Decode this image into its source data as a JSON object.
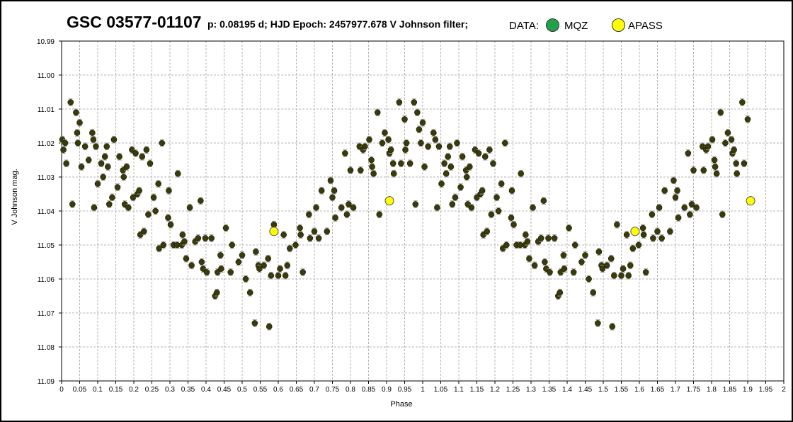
{
  "header": {
    "star_name": "GSC 03577-01107",
    "subtitle": "p: 0.08195 d; HJD Epoch: 2457977.678  V Johnson filter;",
    "legend_title": "DATA:"
  },
  "legend": [
    {
      "label": "MQZ",
      "color": "#22a04a"
    },
    {
      "label": "APASS",
      "color": "#ffff00"
    }
  ],
  "chart_data": {
    "type": "scatter",
    "xlabel": "Phase",
    "ylabel": "V Johnson mag.",
    "xlim": [
      0,
      2
    ],
    "ylim": [
      10.99,
      11.09
    ],
    "y_inverted": true,
    "grid": true,
    "x_ticks": [
      "0",
      "0.05",
      "0.1",
      "0.15",
      "0.2",
      "0.25",
      "0.3",
      "0.35",
      "0.4",
      "0.45",
      "0.5",
      "0.55",
      "0.6",
      "0.65",
      "0.7",
      "0.75",
      "0.8",
      "0.85",
      "0.9",
      "0.95",
      "1",
      "1.05",
      "1.1",
      "1.15",
      "1.2",
      "1.25",
      "1.3",
      "1.35",
      "1.4",
      "1.45",
      "1.5",
      "1.55",
      "1.6",
      "1.65",
      "1.7",
      "1.75",
      "1.8",
      "1.85",
      "1.9",
      "1.95",
      "2"
    ],
    "y_ticks": [
      "10.99",
      "11.00",
      "11.01",
      "11.02",
      "11.03",
      "11.04",
      "11.05",
      "11.06",
      "11.07",
      "11.08",
      "11.09"
    ],
    "series": [
      {
        "name": "MQZ",
        "color": "#3a3a0a",
        "error": 0.001,
        "points": [
          [
            0.002,
            11.019
          ],
          [
            0.005,
            11.022
          ],
          [
            0.01,
            11.02
          ],
          [
            0.013,
            11.026
          ],
          [
            0.025,
            11.008
          ],
          [
            0.03,
            11.038
          ],
          [
            0.04,
            11.011
          ],
          [
            0.043,
            11.017
          ],
          [
            0.045,
            11.02
          ],
          [
            0.05,
            11.014
          ],
          [
            0.055,
            11.027
          ],
          [
            0.065,
            11.021
          ],
          [
            0.075,
            11.025
          ],
          [
            0.085,
            11.017
          ],
          [
            0.088,
            11.019
          ],
          [
            0.09,
            11.039
          ],
          [
            0.095,
            11.021
          ],
          [
            0.1,
            11.032
          ],
          [
            0.11,
            11.026
          ],
          [
            0.115,
            11.03
          ],
          [
            0.12,
            11.024
          ],
          [
            0.125,
            11.021
          ],
          [
            0.128,
            11.027
          ],
          [
            0.132,
            11.038
          ],
          [
            0.14,
            11.036
          ],
          [
            0.145,
            11.019
          ],
          [
            0.155,
            11.033
          ],
          [
            0.16,
            11.024
          ],
          [
            0.17,
            11.028
          ],
          [
            0.172,
            11.03
          ],
          [
            0.175,
            11.038
          ],
          [
            0.18,
            11.027
          ],
          [
            0.185,
            11.039
          ],
          [
            0.195,
            11.022
          ],
          [
            0.198,
            11.036
          ],
          [
            0.205,
            11.023
          ],
          [
            0.21,
            11.035
          ],
          [
            0.215,
            11.034
          ],
          [
            0.218,
            11.047
          ],
          [
            0.223,
            11.024
          ],
          [
            0.228,
            11.046
          ],
          [
            0.235,
            11.022
          ],
          [
            0.24,
            11.041
          ],
          [
            0.245,
            11.026
          ],
          [
            0.255,
            11.036
          ],
          [
            0.26,
            11.04
          ],
          [
            0.268,
            11.032
          ],
          [
            0.27,
            11.051
          ],
          [
            0.278,
            11.02
          ],
          [
            0.282,
            11.05
          ],
          [
            0.295,
            11.042
          ],
          [
            0.297,
            11.034
          ],
          [
            0.302,
            11.044
          ],
          [
            0.31,
            11.05
          ],
          [
            0.32,
            11.05
          ],
          [
            0.322,
            11.029
          ],
          [
            0.333,
            11.05
          ],
          [
            0.335,
            11.047
          ],
          [
            0.34,
            11.049
          ],
          [
            0.345,
            11.054
          ],
          [
            0.355,
            11.039
          ],
          [
            0.36,
            11.056
          ],
          [
            0.37,
            11.049
          ],
          [
            0.378,
            11.048
          ],
          [
            0.385,
            11.037
          ],
          [
            0.388,
            11.055
          ],
          [
            0.392,
            11.057
          ],
          [
            0.398,
            11.048
          ],
          [
            0.402,
            11.058
          ],
          [
            0.415,
            11.048
          ],
          [
            0.425,
            11.065
          ],
          [
            0.43,
            11.064
          ],
          [
            0.432,
            11.058
          ],
          [
            0.44,
            11.053
          ],
          [
            0.442,
            11.057
          ],
          [
            0.455,
            11.045
          ],
          [
            0.468,
            11.058
          ],
          [
            0.472,
            11.05
          ],
          [
            0.49,
            11.055
          ],
          [
            0.5,
            11.053
          ],
          [
            0.51,
            11.06
          ],
          [
            0.522,
            11.064
          ],
          [
            0.535,
            11.073
          ],
          [
            0.538,
            11.052
          ],
          [
            0.545,
            11.056
          ],
          [
            0.548,
            11.057
          ],
          [
            0.56,
            11.056
          ],
          [
            0.572,
            11.054
          ],
          [
            0.575,
            11.074
          ],
          [
            0.58,
            11.059
          ],
          [
            0.588,
            11.044
          ],
          [
            0.6,
            11.059
          ],
          [
            0.605,
            11.057
          ],
          [
            0.615,
            11.047
          ],
          [
            0.62,
            11.059
          ],
          [
            0.625,
            11.056
          ],
          [
            0.632,
            11.051
          ],
          [
            0.648,
            11.05
          ],
          [
            0.66,
            11.045
          ],
          [
            0.662,
            11.047
          ],
          [
            0.668,
            11.058
          ],
          [
            0.685,
            11.041
          ],
          [
            0.688,
            11.048
          ],
          [
            0.7,
            11.046
          ],
          [
            0.705,
            11.039
          ],
          [
            0.712,
            11.048
          ],
          [
            0.72,
            11.034
          ],
          [
            0.735,
            11.046
          ],
          [
            0.745,
            11.031
          ],
          [
            0.75,
            11.036
          ],
          [
            0.755,
            11.034
          ],
          [
            0.758,
            11.042
          ],
          [
            0.775,
            11.039
          ],
          [
            0.785,
            11.023
          ],
          [
            0.79,
            11.041
          ],
          [
            0.795,
            11.038
          ],
          [
            0.8,
            11.028
          ],
          [
            0.808,
            11.039
          ],
          [
            0.825,
            11.021
          ],
          [
            0.828,
            11.028
          ],
          [
            0.835,
            11.022
          ],
          [
            0.84,
            11.021
          ],
          [
            0.852,
            11.019
          ],
          [
            0.858,
            11.025
          ],
          [
            0.86,
            11.027
          ],
          [
            0.864,
            11.029
          ],
          [
            0.875,
            11.011
          ],
          [
            0.88,
            11.041
          ],
          [
            0.888,
            11.02
          ],
          [
            0.895,
            11.017
          ],
          [
            0.905,
            11.019
          ],
          [
            0.908,
            11.023
          ],
          [
            0.912,
            11.022
          ],
          [
            0.918,
            11.026
          ],
          [
            0.92,
            11.029
          ],
          [
            0.935,
            11.008
          ],
          [
            0.94,
            11.026
          ],
          [
            0.95,
            11.013
          ],
          [
            0.952,
            11.022
          ],
          [
            0.955,
            11.02
          ],
          [
            0.965,
            11.026
          ],
          [
            0.976,
            11.008
          ],
          [
            0.98,
            11.038
          ],
          [
            0.985,
            11.011
          ],
          [
            0.99,
            11.016
          ],
          [
            0.995,
            11.02
          ],
          [
            1.0,
            11.014
          ],
          [
            1.005,
            11.027
          ],
          [
            1.015,
            11.021
          ],
          [
            1.03,
            11.017
          ],
          [
            1.035,
            11.019
          ],
          [
            1.04,
            11.039
          ],
          [
            1.045,
            11.021
          ],
          [
            1.052,
            11.032
          ],
          [
            1.06,
            11.026
          ],
          [
            1.065,
            11.029
          ],
          [
            1.07,
            11.024
          ],
          [
            1.075,
            11.021
          ],
          [
            1.078,
            11.027
          ],
          [
            1.082,
            11.038
          ],
          [
            1.09,
            11.036
          ],
          [
            1.095,
            11.02
          ],
          [
            1.105,
            11.033
          ],
          [
            1.11,
            11.024
          ],
          [
            1.12,
            11.028
          ],
          [
            1.122,
            11.03
          ],
          [
            1.125,
            11.038
          ],
          [
            1.13,
            11.027
          ],
          [
            1.135,
            11.039
          ],
          [
            1.145,
            11.022
          ],
          [
            1.15,
            11.036
          ],
          [
            1.155,
            11.023
          ],
          [
            1.16,
            11.035
          ],
          [
            1.165,
            11.034
          ],
          [
            1.168,
            11.047
          ],
          [
            1.173,
            11.024
          ],
          [
            1.178,
            11.046
          ],
          [
            1.185,
            11.022
          ],
          [
            1.19,
            11.041
          ],
          [
            1.195,
            11.026
          ],
          [
            1.205,
            11.036
          ],
          [
            1.21,
            11.04
          ],
          [
            1.218,
            11.032
          ],
          [
            1.222,
            11.051
          ],
          [
            1.228,
            11.02
          ],
          [
            1.232,
            11.05
          ],
          [
            1.245,
            11.042
          ],
          [
            1.247,
            11.034
          ],
          [
            1.252,
            11.044
          ],
          [
            1.26,
            11.05
          ],
          [
            1.27,
            11.05
          ],
          [
            1.272,
            11.029
          ],
          [
            1.283,
            11.05
          ],
          [
            1.285,
            11.047
          ],
          [
            1.29,
            11.049
          ],
          [
            1.295,
            11.054
          ],
          [
            1.305,
            11.039
          ],
          [
            1.31,
            11.056
          ],
          [
            1.32,
            11.049
          ],
          [
            1.328,
            11.048
          ],
          [
            1.335,
            11.037
          ],
          [
            1.338,
            11.055
          ],
          [
            1.342,
            11.057
          ],
          [
            1.348,
            11.048
          ],
          [
            1.352,
            11.058
          ],
          [
            1.365,
            11.048
          ],
          [
            1.375,
            11.065
          ],
          [
            1.38,
            11.064
          ],
          [
            1.382,
            11.058
          ],
          [
            1.39,
            11.053
          ],
          [
            1.392,
            11.057
          ],
          [
            1.405,
            11.045
          ],
          [
            1.418,
            11.058
          ],
          [
            1.422,
            11.05
          ],
          [
            1.44,
            11.055
          ],
          [
            1.45,
            11.053
          ],
          [
            1.46,
            11.06
          ],
          [
            1.472,
            11.064
          ],
          [
            1.485,
            11.073
          ],
          [
            1.488,
            11.052
          ],
          [
            1.495,
            11.056
          ],
          [
            1.498,
            11.057
          ],
          [
            1.51,
            11.056
          ],
          [
            1.522,
            11.054
          ],
          [
            1.525,
            11.074
          ],
          [
            1.53,
            11.059
          ],
          [
            1.538,
            11.044
          ],
          [
            1.55,
            11.059
          ],
          [
            1.555,
            11.057
          ],
          [
            1.565,
            11.047
          ],
          [
            1.57,
            11.059
          ],
          [
            1.575,
            11.056
          ],
          [
            1.582,
            11.051
          ],
          [
            1.598,
            11.05
          ],
          [
            1.61,
            11.045
          ],
          [
            1.612,
            11.047
          ],
          [
            1.618,
            11.058
          ],
          [
            1.635,
            11.041
          ],
          [
            1.638,
            11.048
          ],
          [
            1.65,
            11.046
          ],
          [
            1.655,
            11.039
          ],
          [
            1.662,
            11.048
          ],
          [
            1.67,
            11.034
          ],
          [
            1.685,
            11.046
          ],
          [
            1.695,
            11.031
          ],
          [
            1.7,
            11.036
          ],
          [
            1.705,
            11.034
          ],
          [
            1.708,
            11.042
          ],
          [
            1.725,
            11.039
          ],
          [
            1.735,
            11.023
          ],
          [
            1.74,
            11.041
          ],
          [
            1.745,
            11.038
          ],
          [
            1.75,
            11.028
          ],
          [
            1.758,
            11.039
          ],
          [
            1.775,
            11.021
          ],
          [
            1.778,
            11.028
          ],
          [
            1.785,
            11.022
          ],
          [
            1.79,
            11.021
          ],
          [
            1.802,
            11.019
          ],
          [
            1.808,
            11.025
          ],
          [
            1.81,
            11.027
          ],
          [
            1.814,
            11.029
          ],
          [
            1.825,
            11.011
          ],
          [
            1.83,
            11.041
          ],
          [
            1.838,
            11.02
          ],
          [
            1.845,
            11.017
          ],
          [
            1.855,
            11.019
          ],
          [
            1.858,
            11.023
          ],
          [
            1.862,
            11.022
          ],
          [
            1.868,
            11.026
          ],
          [
            1.87,
            11.029
          ],
          [
            1.885,
            11.008
          ],
          [
            1.89,
            11.026
          ],
          [
            1.9,
            11.013
          ]
        ]
      },
      {
        "name": "APASS",
        "color": "#ffff00",
        "points": [
          [
            0.588,
            11.046
          ],
          [
            0.908,
            11.037
          ],
          [
            1.588,
            11.046
          ],
          [
            1.908,
            11.037
          ]
        ]
      }
    ]
  }
}
